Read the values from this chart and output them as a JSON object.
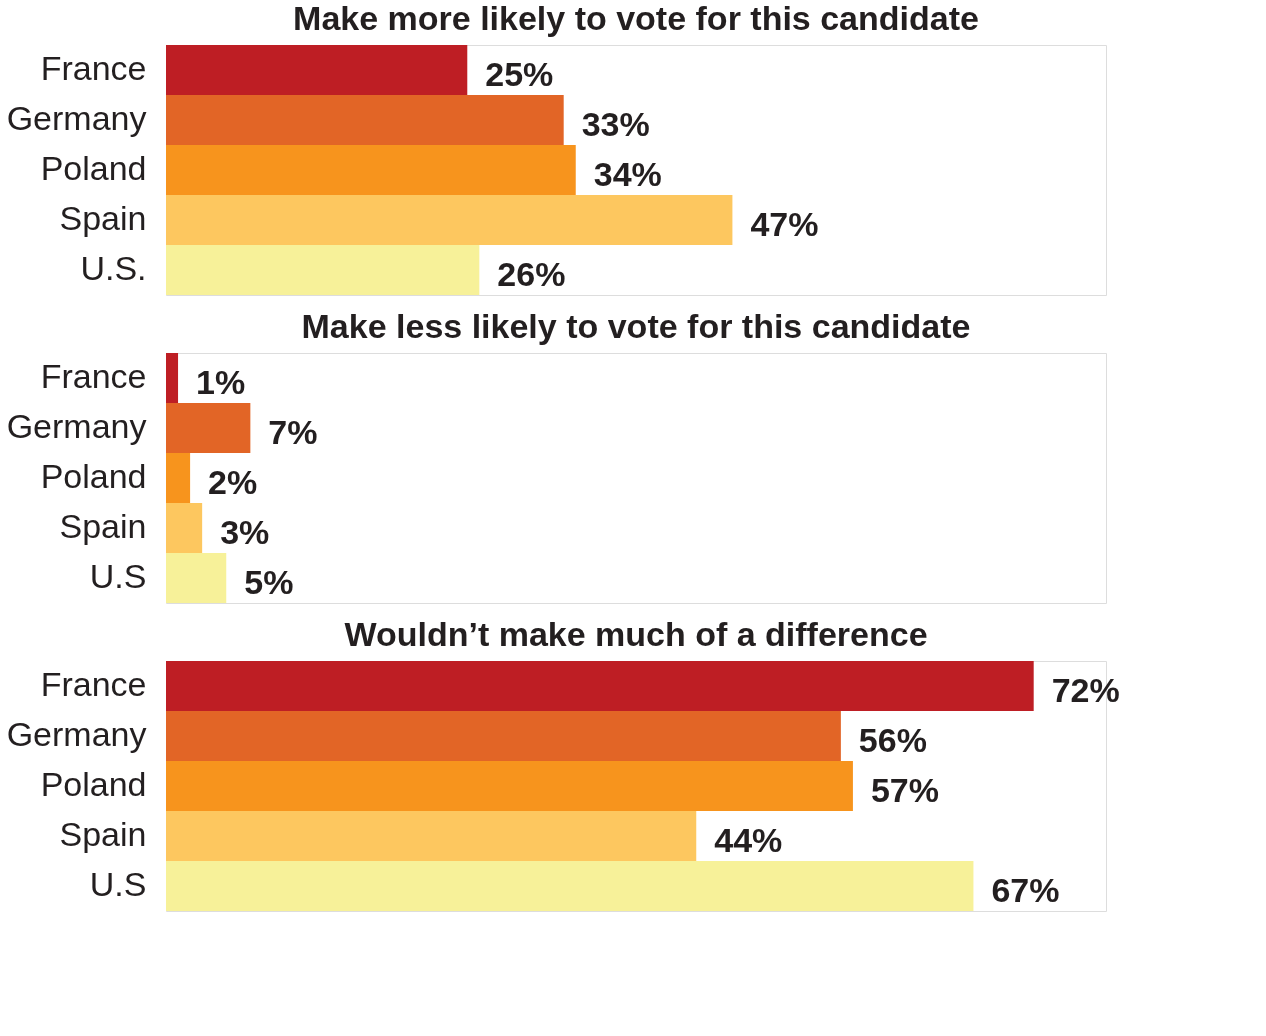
{
  "chart_data": [
    {
      "type": "bar",
      "orientation": "horizontal",
      "title": "Make more likely to vote for this candidate",
      "categories": [
        "France",
        "Germany",
        "Poland",
        "Spain",
        "U.S."
      ],
      "values": [
        25,
        33,
        34,
        47,
        26
      ],
      "value_labels": [
        "25%",
        "33%",
        "34%",
        "47%",
        "26%"
      ],
      "colors": [
        "#be1e24",
        "#e26526",
        "#f7941d",
        "#fdc75f",
        "#f7f199"
      ],
      "xlim": [
        0,
        78
      ],
      "tick_labels": "y"
    },
    {
      "type": "bar",
      "orientation": "horizontal",
      "title": "Make less likely to vote for this candidate",
      "categories": [
        "France",
        "Germany",
        "Poland",
        "Spain",
        "U.S"
      ],
      "values": [
        1,
        7,
        2,
        3,
        5
      ],
      "value_labels": [
        "1%",
        "7%",
        "2%",
        "3%",
        "5%"
      ],
      "colors": [
        "#be1e24",
        "#e26526",
        "#f7941d",
        "#fdc75f",
        "#f7f199"
      ],
      "xlim": [
        0,
        78
      ],
      "tick_labels": "y"
    },
    {
      "type": "bar",
      "orientation": "horizontal",
      "title": "Wouldn’t make much of a difference",
      "categories": [
        "France",
        "Germany",
        "Poland",
        "Spain",
        "U.S"
      ],
      "values": [
        72,
        56,
        57,
        44,
        67
      ],
      "value_labels": [
        "72%",
        "56%",
        "57%",
        "44%",
        "67%"
      ],
      "colors": [
        "#be1e24",
        "#e26526",
        "#f7941d",
        "#fdc75f",
        "#f7f199"
      ],
      "xlim": [
        0,
        78
      ],
      "tick_labels": "y"
    }
  ]
}
